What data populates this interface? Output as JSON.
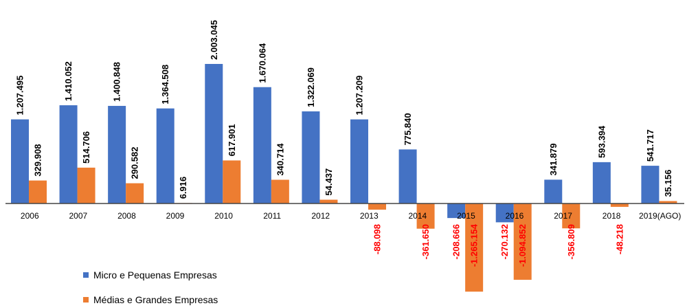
{
  "chart_data": {
    "type": "bar",
    "categories": [
      "2006",
      "2007",
      "2008",
      "2009",
      "2010",
      "2011",
      "2012",
      "2013",
      "2014",
      "2015",
      "2016",
      "2017",
      "2018",
      "2019(AGO)"
    ],
    "series": [
      {
        "name": "Micro e Pequenas Empresas",
        "color": "#4472C4",
        "values": [
          1207495,
          1410052,
          1400848,
          1364508,
          2003045,
          1670064,
          1322069,
          1207209,
          775840,
          -208666,
          -270132,
          341879,
          593394,
          541717
        ],
        "labels": [
          "1.207.495",
          "1.410.052",
          "1.400.848",
          "1.364.508",
          "2.003.045",
          "1.670.064",
          "1.322.069",
          "1.207.209",
          "775.840",
          "-208.666",
          "-270.132",
          "341.879",
          "593.394",
          "541.717"
        ]
      },
      {
        "name": "Médias e Grandes Empresas",
        "color": "#ED7D31",
        "values": [
          329908,
          514706,
          290582,
          6916,
          617901,
          340714,
          54437,
          -88098,
          -361650,
          -1265154,
          -1094852,
          -356809,
          -48218,
          35156
        ],
        "labels": [
          "329.908",
          "514.706",
          "290.582",
          "6.916",
          "617.901",
          "340.714",
          "54.437",
          "-88.098",
          "-361.650",
          "-1.265.154",
          "-1.094.852",
          "-356.809",
          "-48.218",
          "35.156"
        ]
      }
    ],
    "legend_position": "bottom-left",
    "negative_label_color": "#FF0000",
    "positive_label_color": "#000000",
    "grid": false
  }
}
